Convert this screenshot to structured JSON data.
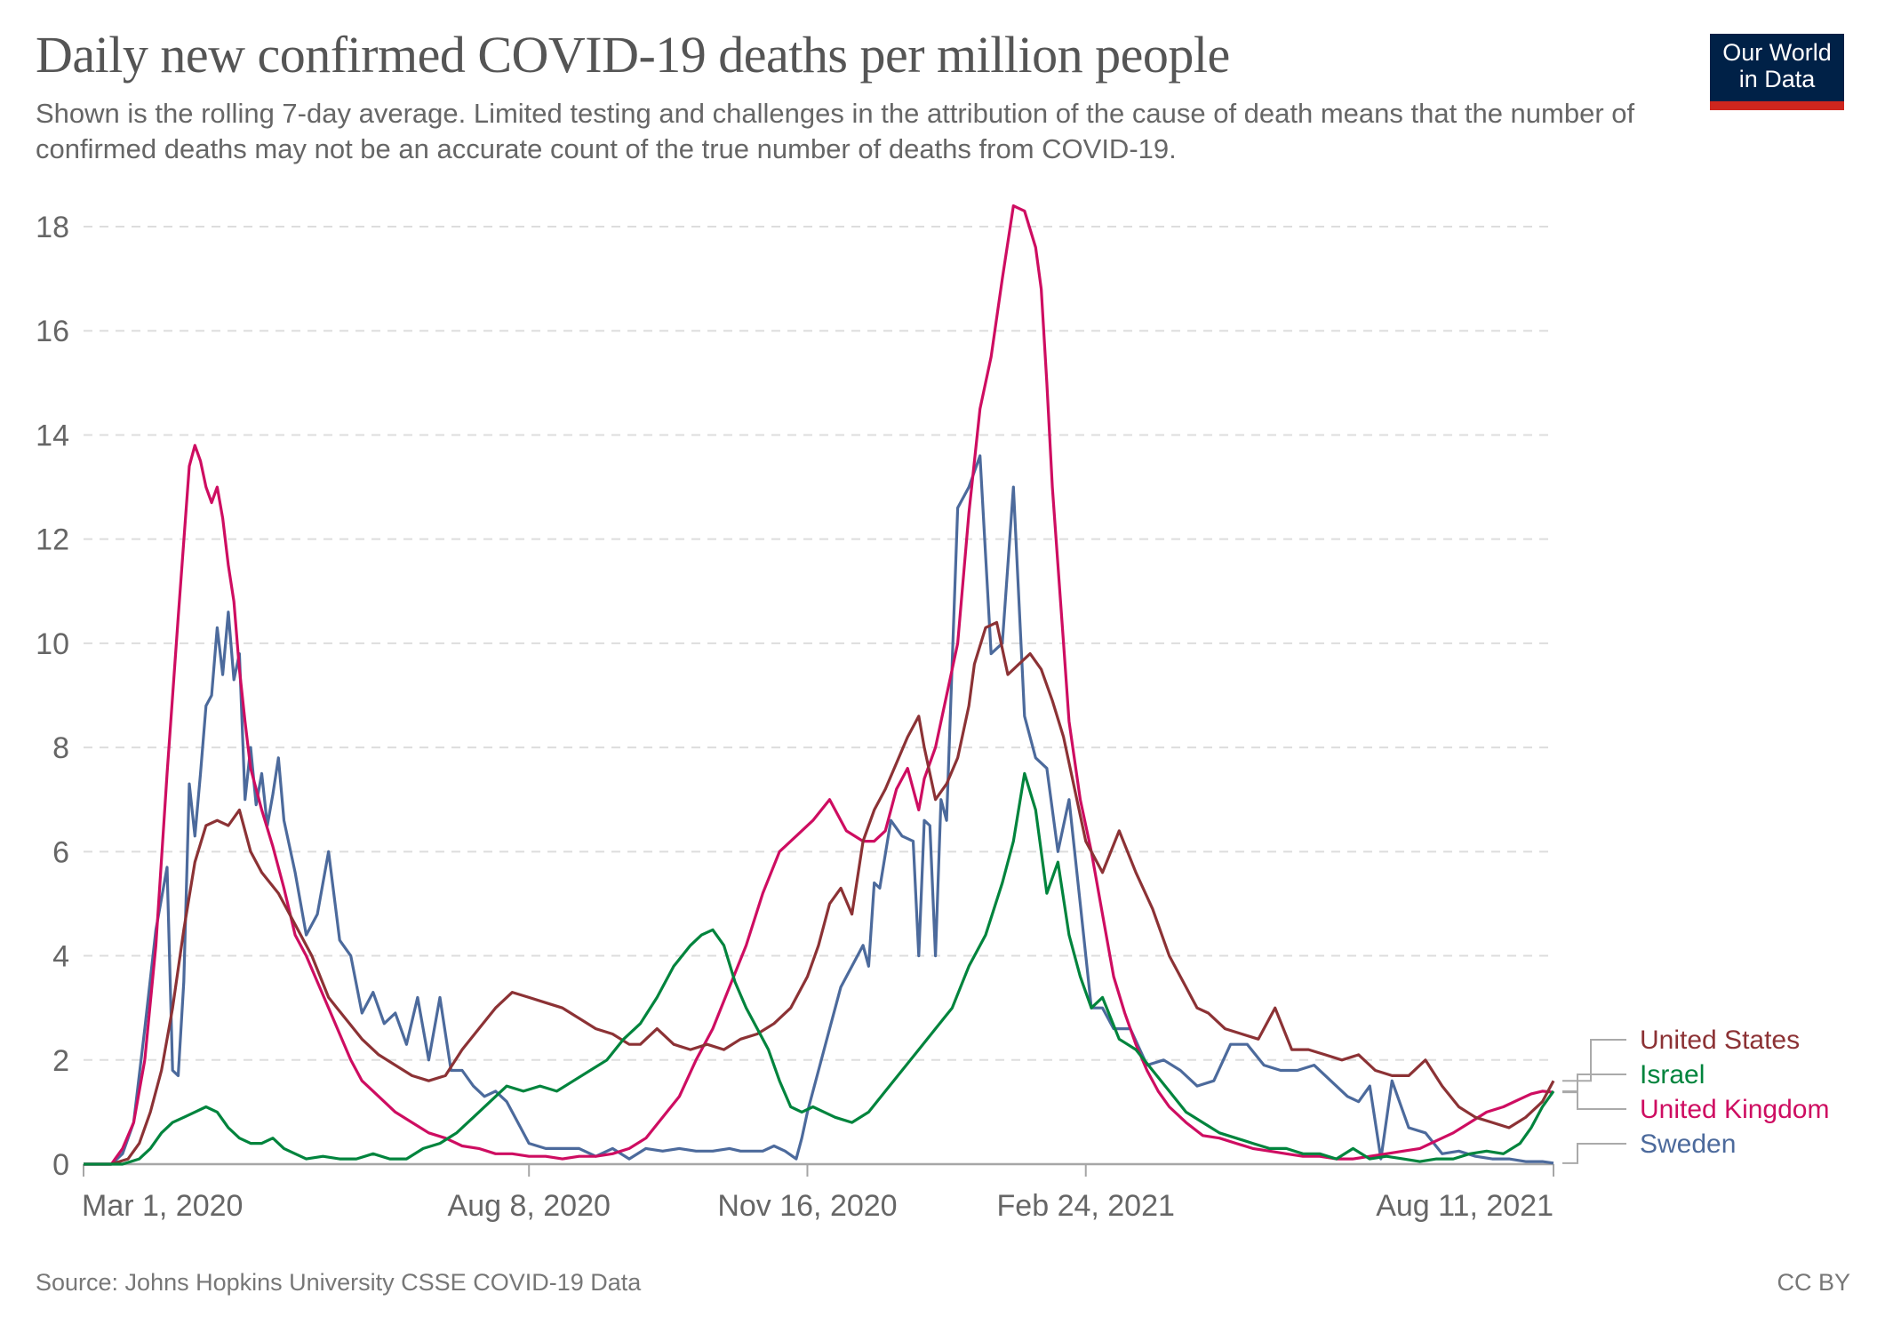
{
  "header": {
    "title": "Daily new confirmed COVID-19 deaths per million people",
    "subtitle": "Shown is the rolling 7-day average. Limited testing and challenges in the attribution of the cause of death means that the number of confirmed deaths may not be an accurate count of the true number of deaths from COVID-19.",
    "logo_text": "Our World in Data"
  },
  "footer": {
    "source": "Source: Johns Hopkins University CSSE COVID-19 Data",
    "license": "CC BY"
  },
  "chart_data": {
    "type": "line",
    "title": "Daily new confirmed COVID-19 deaths per million people",
    "xlabel": "",
    "ylabel": "",
    "x_unit": "days since Mar 1, 2020",
    "xlim": [
      0,
      528
    ],
    "ylim": [
      0,
      18
    ],
    "grid": "horizontal dashed",
    "yticks": [
      0,
      2,
      4,
      6,
      8,
      10,
      12,
      14,
      16,
      18
    ],
    "xticks": [
      {
        "day": 0,
        "label": "Mar 1, 2020"
      },
      {
        "day": 160,
        "label": "Aug 8, 2020"
      },
      {
        "day": 260,
        "label": "Nov 16, 2020"
      },
      {
        "day": 360,
        "label": "Feb 24, 2021"
      },
      {
        "day": 528,
        "label": "Aug 11, 2021"
      }
    ],
    "legend": "right, labels at line ends",
    "series": [
      {
        "name": "United States",
        "color": "#8c3235",
        "x": [
          0,
          10,
          16,
          20,
          24,
          28,
          32,
          36,
          40,
          44,
          48,
          52,
          56,
          60,
          64,
          70,
          76,
          82,
          88,
          94,
          100,
          106,
          112,
          118,
          124,
          130,
          136,
          142,
          148,
          154,
          160,
          166,
          172,
          178,
          184,
          190,
          196,
          200,
          206,
          212,
          218,
          224,
          230,
          236,
          242,
          248,
          254,
          260,
          264,
          268,
          272,
          276,
          280,
          284,
          288,
          292,
          296,
          300,
          302,
          306,
          310,
          314,
          318,
          320,
          324,
          328,
          332,
          336,
          340,
          344,
          348,
          352,
          356,
          360,
          366,
          372,
          378,
          384,
          390,
          396,
          400,
          404,
          410,
          416,
          422,
          428,
          434,
          440,
          446,
          452,
          458,
          464,
          470,
          476,
          482,
          488,
          494,
          500,
          506,
          512,
          518,
          524,
          528
        ],
        "y": [
          0,
          0,
          0.1,
          0.4,
          1.0,
          1.8,
          3.0,
          4.5,
          5.8,
          6.5,
          6.6,
          6.5,
          6.8,
          6.0,
          5.6,
          5.2,
          4.6,
          4.0,
          3.2,
          2.8,
          2.4,
          2.1,
          1.9,
          1.7,
          1.6,
          1.7,
          2.2,
          2.6,
          3.0,
          3.3,
          3.2,
          3.1,
          3.0,
          2.8,
          2.6,
          2.5,
          2.3,
          2.3,
          2.6,
          2.3,
          2.2,
          2.3,
          2.2,
          2.4,
          2.5,
          2.7,
          3.0,
          3.6,
          4.2,
          5.0,
          5.3,
          4.8,
          6.2,
          6.8,
          7.2,
          7.7,
          8.2,
          8.6,
          8.0,
          7.0,
          7.3,
          7.8,
          8.8,
          9.6,
          10.3,
          10.4,
          9.4,
          9.6,
          9.8,
          9.5,
          8.9,
          8.2,
          7.2,
          6.2,
          5.6,
          6.4,
          5.6,
          4.9,
          4.0,
          3.4,
          3.0,
          2.9,
          2.6,
          2.5,
          2.4,
          3.0,
          2.2,
          2.2,
          2.1,
          2.0,
          2.1,
          1.8,
          1.7,
          1.7,
          2.0,
          1.5,
          1.1,
          0.9,
          0.8,
          0.7,
          0.9,
          1.2,
          1.6
        ]
      },
      {
        "name": "Israel",
        "color": "#00843d",
        "x": [
          0,
          14,
          20,
          24,
          28,
          32,
          36,
          40,
          44,
          48,
          52,
          56,
          60,
          64,
          68,
          72,
          76,
          80,
          86,
          92,
          98,
          104,
          110,
          116,
          122,
          128,
          134,
          140,
          146,
          152,
          158,
          164,
          170,
          176,
          182,
          188,
          194,
          200,
          206,
          212,
          218,
          222,
          226,
          230,
          234,
          238,
          242,
          246,
          250,
          254,
          258,
          262,
          266,
          270,
          276,
          282,
          288,
          294,
          300,
          306,
          312,
          318,
          324,
          330,
          334,
          338,
          342,
          346,
          350,
          354,
          358,
          362,
          366,
          372,
          378,
          384,
          390,
          396,
          402,
          408,
          414,
          420,
          426,
          432,
          438,
          444,
          450,
          456,
          462,
          468,
          474,
          480,
          486,
          492,
          498,
          504,
          510,
          516,
          520,
          524,
          528
        ],
        "y": [
          0,
          0,
          0.1,
          0.3,
          0.6,
          0.8,
          0.9,
          1.0,
          1.1,
          1.0,
          0.7,
          0.5,
          0.4,
          0.4,
          0.5,
          0.3,
          0.2,
          0.1,
          0.15,
          0.1,
          0.1,
          0.2,
          0.1,
          0.1,
          0.3,
          0.4,
          0.6,
          0.9,
          1.2,
          1.5,
          1.4,
          1.5,
          1.4,
          1.6,
          1.8,
          2.0,
          2.4,
          2.7,
          3.2,
          3.8,
          4.2,
          4.4,
          4.5,
          4.2,
          3.5,
          3.0,
          2.6,
          2.2,
          1.6,
          1.1,
          1.0,
          1.1,
          1.0,
          0.9,
          0.8,
          1.0,
          1.4,
          1.8,
          2.2,
          2.6,
          3.0,
          3.8,
          4.4,
          5.4,
          6.2,
          7.5,
          6.8,
          5.2,
          5.8,
          4.4,
          3.6,
          3.0,
          3.2,
          2.4,
          2.2,
          1.8,
          1.4,
          1.0,
          0.8,
          0.6,
          0.5,
          0.4,
          0.3,
          0.3,
          0.2,
          0.2,
          0.1,
          0.3,
          0.1,
          0.15,
          0.1,
          0.05,
          0.1,
          0.1,
          0.2,
          0.25,
          0.2,
          0.4,
          0.7,
          1.1,
          1.4
        ]
      },
      {
        "name": "United Kingdom",
        "color": "#ce0d61",
        "x": [
          0,
          10,
          14,
          18,
          22,
          26,
          30,
          34,
          38,
          40,
          42,
          44,
          46,
          48,
          50,
          52,
          54,
          56,
          58,
          60,
          64,
          68,
          72,
          76,
          80,
          84,
          88,
          92,
          96,
          100,
          106,
          112,
          118,
          124,
          130,
          136,
          142,
          148,
          154,
          160,
          166,
          172,
          178,
          184,
          190,
          196,
          202,
          208,
          214,
          220,
          226,
          232,
          238,
          244,
          250,
          256,
          262,
          268,
          274,
          280,
          284,
          288,
          292,
          296,
          300,
          302,
          306,
          310,
          314,
          318,
          322,
          326,
          330,
          334,
          338,
          342,
          344,
          346,
          348,
          350,
          352,
          354,
          358,
          362,
          366,
          370,
          374,
          378,
          382,
          386,
          390,
          396,
          402,
          408,
          414,
          420,
          426,
          432,
          438,
          444,
          450,
          456,
          462,
          468,
          474,
          480,
          486,
          492,
          498,
          504,
          510,
          516,
          520,
          524,
          528
        ],
        "y": [
          0,
          0,
          0.3,
          0.8,
          2.0,
          4.2,
          7.5,
          10.5,
          13.4,
          13.8,
          13.5,
          13.0,
          12.7,
          13.0,
          12.4,
          11.5,
          10.8,
          9.5,
          8.5,
          7.6,
          6.8,
          6.1,
          5.3,
          4.4,
          4.0,
          3.5,
          3.0,
          2.5,
          2.0,
          1.6,
          1.3,
          1.0,
          0.8,
          0.6,
          0.5,
          0.35,
          0.3,
          0.2,
          0.2,
          0.15,
          0.15,
          0.1,
          0.15,
          0.15,
          0.2,
          0.3,
          0.5,
          0.9,
          1.3,
          2.0,
          2.6,
          3.4,
          4.2,
          5.2,
          6.0,
          6.3,
          6.6,
          7.0,
          6.4,
          6.2,
          6.2,
          6.4,
          7.2,
          7.6,
          6.8,
          7.4,
          8.0,
          9.0,
          10.0,
          12.5,
          14.5,
          15.5,
          17.0,
          18.4,
          18.3,
          17.6,
          16.8,
          15.0,
          13.0,
          11.5,
          10.0,
          8.5,
          7.0,
          6.0,
          4.8,
          3.6,
          2.9,
          2.3,
          1.8,
          1.4,
          1.1,
          0.8,
          0.55,
          0.5,
          0.4,
          0.3,
          0.25,
          0.2,
          0.15,
          0.15,
          0.1,
          0.1,
          0.15,
          0.2,
          0.25,
          0.3,
          0.45,
          0.6,
          0.8,
          1.0,
          1.1,
          1.25,
          1.35,
          1.4,
          1.38
        ]
      },
      {
        "name": "Sweden",
        "color": "#4c6a9c",
        "x": [
          0,
          10,
          14,
          18,
          22,
          26,
          30,
          32,
          34,
          36,
          38,
          40,
          42,
          44,
          46,
          48,
          50,
          52,
          54,
          56,
          58,
          60,
          62,
          64,
          66,
          68,
          70,
          72,
          76,
          80,
          84,
          88,
          92,
          96,
          100,
          104,
          108,
          112,
          116,
          120,
          124,
          128,
          132,
          136,
          140,
          144,
          148,
          152,
          156,
          160,
          166,
          172,
          178,
          184,
          190,
          196,
          202,
          208,
          214,
          220,
          226,
          232,
          236,
          240,
          244,
          248,
          252,
          256,
          258,
          260,
          264,
          268,
          272,
          276,
          280,
          282,
          284,
          286,
          290,
          294,
          298,
          300,
          302,
          304,
          306,
          308,
          310,
          314,
          318,
          322,
          326,
          330,
          334,
          338,
          342,
          346,
          350,
          354,
          358,
          362,
          366,
          370,
          376,
          382,
          388,
          394,
          400,
          406,
          412,
          418,
          424,
          430,
          436,
          442,
          448,
          454,
          458,
          462,
          466,
          470,
          476,
          482,
          488,
          494,
          500,
          506,
          512,
          518,
          524,
          528
        ],
        "y": [
          0,
          0,
          0.2,
          0.8,
          2.6,
          4.5,
          5.7,
          1.8,
          1.7,
          3.5,
          7.3,
          6.3,
          7.5,
          8.8,
          9.0,
          10.3,
          9.4,
          10.6,
          9.3,
          9.8,
          7.0,
          8.0,
          6.9,
          7.5,
          6.5,
          7.1,
          7.8,
          6.6,
          5.6,
          4.4,
          4.8,
          6.0,
          4.3,
          4.0,
          2.9,
          3.3,
          2.7,
          2.9,
          2.3,
          3.2,
          2.0,
          3.2,
          1.8,
          1.8,
          1.5,
          1.3,
          1.4,
          1.2,
          0.8,
          0.4,
          0.3,
          0.3,
          0.3,
          0.15,
          0.3,
          0.1,
          0.3,
          0.25,
          0.3,
          0.25,
          0.25,
          0.3,
          0.25,
          0.25,
          0.25,
          0.35,
          0.25,
          0.1,
          0.5,
          1.0,
          1.8,
          2.6,
          3.4,
          3.8,
          4.2,
          3.8,
          5.4,
          5.3,
          6.6,
          6.3,
          6.2,
          4.0,
          6.6,
          6.5,
          4.0,
          7.0,
          6.6,
          12.6,
          13.0,
          13.6,
          9.8,
          10.0,
          13.0,
          8.6,
          7.8,
          7.6,
          6.0,
          7.0,
          5.0,
          3.0,
          3.0,
          2.6,
          2.6,
          1.9,
          2.0,
          1.8,
          1.5,
          1.6,
          2.3,
          2.3,
          1.9,
          1.8,
          1.8,
          1.9,
          1.6,
          1.3,
          1.2,
          1.5,
          0.1,
          1.6,
          0.7,
          0.6,
          0.2,
          0.25,
          0.15,
          0.1,
          0.1,
          0.05,
          0.05,
          0.02
        ]
      }
    ]
  }
}
